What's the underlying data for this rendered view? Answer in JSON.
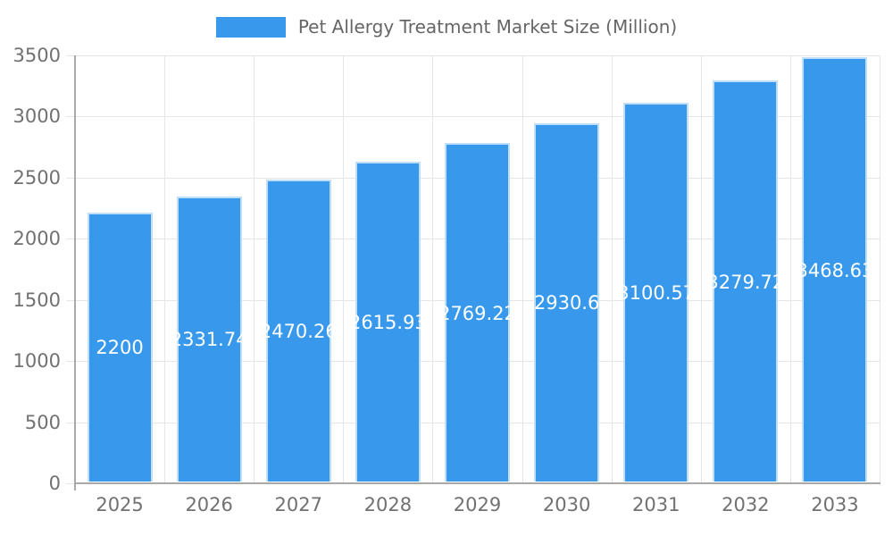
{
  "legend": {
    "label": "Pet Allergy Treatment Market Size (Million)",
    "swatch_color": "#3899ec",
    "position": "top"
  },
  "chart_data": {
    "type": "bar",
    "title": "Pet Allergy Treatment Market Size (Million)",
    "categories": [
      "2025",
      "2026",
      "2027",
      "2028",
      "2029",
      "2030",
      "2031",
      "2032",
      "2033"
    ],
    "values": [
      2200,
      2331.74,
      2470.26,
      2615.93,
      2769.22,
      2930.6,
      3100.57,
      3279.72,
      3468.63
    ],
    "value_labels": [
      "2200",
      "2331.74",
      "2470.26",
      "2615.93",
      "2769.22",
      "2930.6",
      "3100.57",
      "3279.72",
      "3468.63"
    ],
    "xlabel": "",
    "ylabel": "",
    "ylim": [
      0,
      3500
    ],
    "ytick_labels": [
      "0",
      "500",
      "1000",
      "1500",
      "2000",
      "2500",
      "3000",
      "3500"
    ],
    "ytick_values": [
      0,
      500,
      1000,
      1500,
      2000,
      2500,
      3000,
      3500
    ],
    "grid": true,
    "legend_position": "top",
    "colors": {
      "bar": "#3899ec",
      "bar_border": "#bfdef8",
      "grid": "#e6e6e6",
      "axis": "#a9a9a9",
      "tick_text": "#717171",
      "value_text": "#ffffff",
      "legend_text": "#666666"
    }
  }
}
